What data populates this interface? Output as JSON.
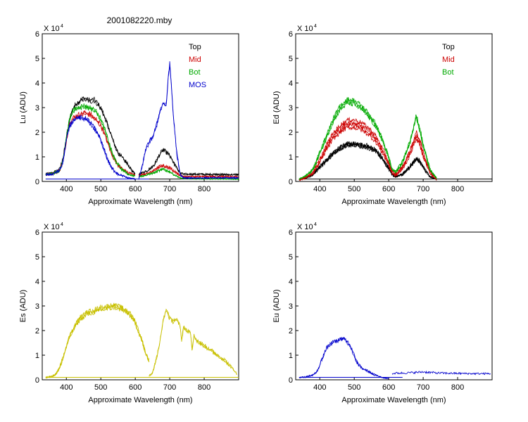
{
  "figure_title": "2001082220.mby",
  "chart_data": [
    {
      "id": "lu",
      "type": "line",
      "xlabel": "Approximate Wavelength (nm)",
      "ylabel": "Lu (ADU)",
      "multiplier_label": "X 10",
      "multiplier_exp": "4",
      "xlim": [
        330,
        900
      ],
      "ylim": [
        0,
        6
      ],
      "xticks": [
        400,
        500,
        600,
        700,
        800
      ],
      "yticks": [
        0,
        1,
        2,
        3,
        4,
        5,
        6
      ],
      "legend_position": "top-right",
      "series": [
        {
          "name": "Top",
          "color": "#000000",
          "bands": [
            {
              "x": [
                340,
                360,
                380,
                390,
                400,
                410,
                420,
                430,
                440,
                450,
                460,
                470,
                480,
                490,
                500,
                510,
                520,
                530,
                540,
                550,
                560,
                570,
                580,
                590,
                600
              ],
              "y": [
                0.3,
                0.35,
                0.5,
                0.9,
                1.8,
                2.6,
                3.0,
                3.2,
                3.3,
                3.4,
                3.35,
                3.3,
                3.35,
                3.2,
                3.0,
                2.7,
                2.3,
                1.9,
                1.5,
                1.2,
                1.0,
                0.85,
                0.7,
                0.45,
                0.3
              ],
              "offsets": [
                0,
                -0.15
              ]
            },
            {
              "x": [
                610,
                620,
                630,
                640,
                650,
                660,
                670,
                680,
                690,
                700,
                710,
                720,
                730,
                740,
                900
              ],
              "y": [
                0.3,
                0.35,
                0.4,
                0.5,
                0.6,
                0.8,
                1.1,
                1.3,
                1.2,
                1.05,
                0.8,
                0.55,
                0.35,
                0.3,
                0.28
              ],
              "offsets": [
                0,
                -0.08
              ]
            }
          ],
          "baseline": {
            "x": [
              340,
              900
            ],
            "y": 0.1
          }
        },
        {
          "name": "Mid",
          "color": "#cc0000",
          "bands": [
            {
              "x": [
                340,
                360,
                380,
                390,
                400,
                410,
                420,
                430,
                440,
                450,
                460,
                470,
                480,
                490,
                500,
                510,
                520,
                530,
                540,
                550,
                560,
                570,
                580,
                590,
                600
              ],
              "y": [
                0.3,
                0.32,
                0.45,
                0.8,
                1.7,
                2.4,
                2.6,
                2.7,
                2.75,
                2.8,
                2.8,
                2.75,
                2.6,
                2.5,
                2.3,
                2.0,
                1.6,
                1.2,
                0.9,
                0.7,
                0.55,
                0.45,
                0.35,
                0.3,
                0.28
              ],
              "offsets": [
                0,
                -0.2
              ]
            },
            {
              "x": [
                610,
                620,
                630,
                640,
                650,
                660,
                670,
                680,
                690,
                700,
                710,
                720,
                730,
                740,
                900
              ],
              "y": [
                0.25,
                0.28,
                0.3,
                0.35,
                0.4,
                0.5,
                0.6,
                0.65,
                0.6,
                0.55,
                0.45,
                0.35,
                0.25,
                0.2,
                0.2
              ],
              "offsets": [
                0,
                -0.06
              ]
            }
          ]
        },
        {
          "name": "Bot",
          "color": "#00aa00",
          "bands": [
            {
              "x": [
                340,
                360,
                380,
                390,
                400,
                410,
                420,
                430,
                440,
                450,
                460,
                470,
                480,
                490,
                500,
                510,
                520,
                530,
                540,
                550,
                560,
                570,
                580,
                590,
                600
              ],
              "y": [
                0.3,
                0.32,
                0.45,
                0.8,
                1.8,
                2.6,
                2.9,
                3.0,
                3.05,
                3.1,
                3.05,
                3.0,
                2.95,
                2.8,
                2.55,
                2.2,
                1.75,
                1.3,
                0.95,
                0.7,
                0.5,
                0.4,
                0.3,
                0.25,
                0.22
              ],
              "offsets": [
                0,
                -0.15
              ]
            },
            {
              "x": [
                610,
                620,
                630,
                640,
                650,
                660,
                670,
                680,
                690,
                700,
                710,
                720,
                730,
                740,
                900
              ],
              "y": [
                0.2,
                0.22,
                0.25,
                0.3,
                0.33,
                0.38,
                0.45,
                0.5,
                0.45,
                0.4,
                0.3,
                0.22,
                0.15,
                0.12,
                0.1
              ],
              "offsets": [
                0,
                -0.04
              ]
            }
          ]
        },
        {
          "name": "MOS",
          "color": "#0000cc",
          "bands": [
            {
              "x": [
                340,
                360,
                380,
                390,
                400,
                410,
                420,
                430,
                440,
                450,
                460,
                470,
                480,
                490,
                500,
                510,
                520,
                530,
                540,
                550,
                560,
                570,
                580,
                590,
                600
              ],
              "y": [
                0.28,
                0.3,
                0.45,
                0.8,
                1.7,
                2.3,
                2.5,
                2.6,
                2.6,
                2.6,
                2.55,
                2.4,
                2.2,
                2.0,
                1.7,
                1.3,
                0.9,
                0.6,
                0.4,
                0.3,
                0.25,
                0.2,
                0.15,
                0.12,
                0.1
              ],
              "offsets": [
                0,
                -0.18
              ]
            },
            {
              "x": [
                610,
                620,
                630,
                640,
                650,
                660,
                670,
                680,
                690,
                695,
                700,
                705,
                710,
                720,
                730,
                740,
                900
              ],
              "y": [
                0.1,
                0.6,
                1.3,
                1.6,
                1.8,
                2.2,
                2.8,
                3.2,
                3.1,
                4.2,
                4.8,
                3.9,
                2.8,
                1.2,
                0.3,
                0.15,
                0.15
              ],
              "offsets": [
                0,
                -0.15
              ]
            }
          ],
          "baseline": {
            "x": [
              340,
              640
            ],
            "y": 0.1
          }
        }
      ]
    },
    {
      "id": "ed",
      "type": "line",
      "xlabel": "Approximate Wavelength (nm)",
      "ylabel": "Ed  (ADU)",
      "multiplier_label": "X 10",
      "multiplier_exp": "4",
      "xlim": [
        330,
        900
      ],
      "ylim": [
        0,
        6
      ],
      "xticks": [
        400,
        500,
        600,
        700,
        800
      ],
      "yticks": [
        0,
        1,
        2,
        3,
        4,
        5,
        6
      ],
      "legend_position": "top-right",
      "series": [
        {
          "name": "Top",
          "color": "#000000",
          "bands": [
            {
              "x": [
                340,
                360,
                380,
                400,
                420,
                440,
                460,
                480,
                500,
                520,
                540,
                560,
                580,
                600,
                610,
                620,
                640,
                660,
                680,
                690,
                700,
                720,
                740
              ],
              "y": [
                0.1,
                0.15,
                0.3,
                0.6,
                0.9,
                1.2,
                1.4,
                1.55,
                1.55,
                1.5,
                1.45,
                1.3,
                1.0,
                0.55,
                0.3,
                0.2,
                0.3,
                0.6,
                0.95,
                0.85,
                0.6,
                0.2,
                0.1
              ],
              "offsets": [
                0,
                -0.12,
                -0.25,
                -0.35
              ]
            }
          ],
          "baseline": {
            "x": [
              340,
              900
            ],
            "y": 0.1
          }
        },
        {
          "name": "Mid",
          "color": "#cc0000",
          "bands": [
            {
              "x": [
                340,
                360,
                380,
                400,
                420,
                440,
                460,
                480,
                500,
                520,
                540,
                560,
                580,
                600,
                610,
                620,
                640,
                660,
                680,
                690,
                700,
                720,
                740
              ],
              "y": [
                0.1,
                0.2,
                0.4,
                0.9,
                1.5,
                2.0,
                2.3,
                2.5,
                2.5,
                2.4,
                2.2,
                1.9,
                1.4,
                0.8,
                0.4,
                0.3,
                0.6,
                1.2,
                2.0,
                1.7,
                1.2,
                0.4,
                0.1
              ],
              "offsets": [
                0,
                -0.3,
                -0.6,
                -0.9
              ]
            }
          ]
        },
        {
          "name": "Bot",
          "color": "#00aa00",
          "bands": [
            {
              "x": [
                340,
                360,
                380,
                400,
                420,
                440,
                460,
                480,
                500,
                520,
                540,
                560,
                580,
                600,
                610,
                620,
                640,
                660,
                680,
                690,
                700,
                720,
                740
              ],
              "y": [
                0.1,
                0.25,
                0.5,
                1.2,
                1.9,
                2.6,
                3.1,
                3.35,
                3.3,
                3.1,
                2.8,
                2.4,
                1.8,
                1.0,
                0.5,
                0.4,
                0.8,
                1.6,
                2.7,
                2.2,
                1.5,
                0.5,
                0.12
              ],
              "offsets": [
                0,
                -0.2,
                -0.4
              ]
            }
          ]
        }
      ]
    },
    {
      "id": "es",
      "type": "line",
      "xlabel": "Approximate Wavelength (nm)",
      "ylabel": "Es  (ADU)",
      "multiplier_label": "X 10",
      "multiplier_exp": "4",
      "xlim": [
        330,
        900
      ],
      "ylim": [
        0,
        6
      ],
      "xticks": [
        400,
        500,
        600,
        700,
        800
      ],
      "yticks": [
        0,
        1,
        2,
        3,
        4,
        5,
        6
      ],
      "series": [
        {
          "name": "",
          "color": "#c8c000",
          "bands": [
            {
              "x": [
                340,
                360,
                370,
                380,
                390,
                400,
                410,
                420,
                430,
                440,
                460,
                480,
                500,
                520,
                540,
                560,
                580,
                600,
                610,
                620,
                630,
                640
              ],
              "y": [
                0.1,
                0.15,
                0.25,
                0.5,
                0.9,
                1.4,
                1.8,
                2.1,
                2.35,
                2.55,
                2.75,
                2.85,
                2.95,
                3.0,
                3.05,
                2.95,
                2.8,
                2.4,
                2.0,
                1.6,
                1.1,
                0.8
              ],
              "offsets": [
                0,
                -0.15,
                -0.3
              ]
            },
            {
              "x": [
                640,
                650,
                660,
                670,
                680,
                690,
                700,
                710,
                720,
                730,
                735,
                740,
                750,
                760,
                765,
                770,
                780,
                800,
                820,
                840,
                860,
                880,
                890,
                895
              ],
              "y": [
                0.15,
                0.3,
                0.8,
                1.4,
                2.4,
                2.9,
                2.5,
                2.4,
                2.5,
                2.2,
                1.6,
                2.2,
                2.0,
                2.0,
                1.2,
                1.8,
                1.6,
                1.4,
                1.2,
                1.0,
                0.8,
                0.5,
                0.35,
                0.2
              ],
              "offsets": [
                0,
                -0.12
              ]
            }
          ],
          "baseline": {
            "x": [
              340,
              900
            ],
            "y": 0.1
          }
        }
      ]
    },
    {
      "id": "eu",
      "type": "line",
      "xlabel": "Approximate Wavelength (nm)",
      "ylabel": "Eu  (ADU)",
      "multiplier_label": "X 10",
      "multiplier_exp": "4",
      "xlim": [
        330,
        900
      ],
      "ylim": [
        0,
        6
      ],
      "xticks": [
        400,
        500,
        600,
        700,
        800
      ],
      "yticks": [
        0,
        1,
        2,
        3,
        4,
        5,
        6
      ],
      "series": [
        {
          "name": "",
          "color": "#0000cc",
          "bands": [
            {
              "x": [
                340,
                360,
                380,
                390,
                400,
                410,
                420,
                430,
                440,
                450,
                460,
                470,
                480,
                490,
                500,
                510,
                520,
                540,
                560,
                580,
                600
              ],
              "y": [
                0.1,
                0.12,
                0.2,
                0.3,
                0.6,
                1.0,
                1.3,
                1.45,
                1.55,
                1.6,
                1.65,
                1.7,
                1.55,
                1.3,
                1.0,
                0.65,
                0.5,
                0.35,
                0.2,
                0.1,
                0.05
              ],
              "offsets": [
                0,
                -0.08
              ]
            },
            {
              "x": [
                610,
                620,
                650,
                680,
                700,
                720,
                740,
                760,
                800,
                850,
                895
              ],
              "y": [
                0.25,
                0.27,
                0.28,
                0.3,
                0.32,
                0.3,
                0.28,
                0.27,
                0.26,
                0.25,
                0.25
              ],
              "offsets": [
                0
              ]
            }
          ],
          "baseline": {
            "x": [
              340,
              640
            ],
            "y": 0.1
          }
        }
      ]
    }
  ]
}
